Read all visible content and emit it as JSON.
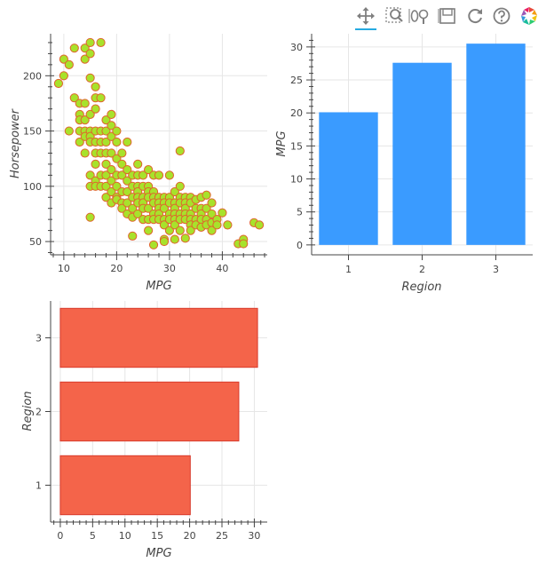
{
  "toolbar": {
    "tools": [
      "pan-tool",
      "box-zoom-tool",
      "wheel-zoom-tool",
      "save-tool",
      "reset-tool",
      "help-tool",
      "bokeh-logo"
    ]
  },
  "colors": {
    "scatter_fill": "#a8e22b",
    "scatter_line": "#e0632c",
    "bar_vertical_fill": "#3a9bff",
    "bar_horizontal_fill": "#f4644a",
    "bar_horizontal_line": "#d8392b",
    "grid": "#e6e6e6",
    "axis": "#444444",
    "tool_active": "#26aae1"
  },
  "chart_data": [
    {
      "type": "scatter",
      "xlabel": "MPG",
      "ylabel": "Horsepower",
      "xlim": [
        7.5,
        48.5
      ],
      "ylim": [
        38,
        238
      ],
      "xticks": [
        10,
        20,
        30,
        40
      ],
      "yticks": [
        50,
        100,
        150,
        200
      ],
      "grid": true,
      "points": [
        [
          9,
          193
        ],
        [
          10,
          215
        ],
        [
          10,
          200
        ],
        [
          11,
          210
        ],
        [
          11,
          150
        ],
        [
          12,
          180
        ],
        [
          12,
          225
        ],
        [
          13,
          175
        ],
        [
          13,
          165
        ],
        [
          13,
          160
        ],
        [
          13,
          150
        ],
        [
          13,
          140
        ],
        [
          14,
          225
        ],
        [
          14,
          215
        ],
        [
          14,
          175
        ],
        [
          14,
          160
        ],
        [
          14,
          150
        ],
        [
          14,
          145
        ],
        [
          14,
          130
        ],
        [
          15,
          230
        ],
        [
          15,
          220
        ],
        [
          15,
          198
        ],
        [
          15,
          165
        ],
        [
          15,
          150
        ],
        [
          15,
          145
        ],
        [
          15,
          140
        ],
        [
          15,
          110
        ],
        [
          15,
          100
        ],
        [
          15,
          72
        ],
        [
          16,
          190
        ],
        [
          16,
          180
        ],
        [
          16,
          170
        ],
        [
          16,
          150
        ],
        [
          16,
          140
        ],
        [
          16,
          130
        ],
        [
          16,
          120
        ],
        [
          16,
          105
        ],
        [
          16,
          100
        ],
        [
          17,
          230
        ],
        [
          17,
          180
        ],
        [
          17,
          150
        ],
        [
          17,
          140
        ],
        [
          17,
          130
        ],
        [
          17,
          110
        ],
        [
          17,
          100
        ],
        [
          18,
          160
        ],
        [
          18,
          150
        ],
        [
          18,
          140
        ],
        [
          18,
          130
        ],
        [
          18,
          120
        ],
        [
          18,
          110
        ],
        [
          18,
          100
        ],
        [
          18,
          90
        ],
        [
          19,
          165
        ],
        [
          19,
          155
        ],
        [
          19,
          145
        ],
        [
          19,
          130
        ],
        [
          19,
          115
        ],
        [
          19,
          105
        ],
        [
          19,
          95
        ],
        [
          19,
          85
        ],
        [
          20,
          150
        ],
        [
          20,
          140
        ],
        [
          20,
          125
        ],
        [
          20,
          110
        ],
        [
          20,
          100
        ],
        [
          20,
          90
        ],
        [
          20,
          88
        ],
        [
          21,
          130
        ],
        [
          21,
          120
        ],
        [
          21,
          110
        ],
        [
          21,
          95
        ],
        [
          21,
          85
        ],
        [
          21,
          80
        ],
        [
          22,
          140
        ],
        [
          22,
          115
        ],
        [
          22,
          105
        ],
        [
          22,
          95
        ],
        [
          22,
          85
        ],
        [
          22,
          75
        ],
        [
          23,
          110
        ],
        [
          23,
          100
        ],
        [
          23,
          90
        ],
        [
          23,
          80
        ],
        [
          23,
          72
        ],
        [
          23,
          55
        ],
        [
          24,
          120
        ],
        [
          24,
          110
        ],
        [
          24,
          100
        ],
        [
          24,
          95
        ],
        [
          24,
          90
        ],
        [
          24,
          85
        ],
        [
          24,
          75
        ],
        [
          25,
          110
        ],
        [
          25,
          100
        ],
        [
          25,
          90
        ],
        [
          25,
          85
        ],
        [
          25,
          80
        ],
        [
          25,
          70
        ],
        [
          26,
          115
        ],
        [
          26,
          100
        ],
        [
          26,
          95
        ],
        [
          26,
          90
        ],
        [
          26,
          80
        ],
        [
          26,
          70
        ],
        [
          26,
          60
        ],
        [
          27,
          110
        ],
        [
          27,
          95
        ],
        [
          27,
          90
        ],
        [
          27,
          85
        ],
        [
          27,
          75
        ],
        [
          27,
          70
        ],
        [
          27,
          47
        ],
        [
          28,
          110
        ],
        [
          28,
          90
        ],
        [
          28,
          85
        ],
        [
          28,
          80
        ],
        [
          28,
          75
        ],
        [
          28,
          70
        ],
        [
          29,
          90
        ],
        [
          29,
          85
        ],
        [
          29,
          80
        ],
        [
          29,
          70
        ],
        [
          29,
          65
        ],
        [
          29,
          52
        ],
        [
          29,
          50
        ],
        [
          30,
          110
        ],
        [
          30,
          90
        ],
        [
          30,
          85
        ],
        [
          30,
          75
        ],
        [
          30,
          70
        ],
        [
          30,
          60
        ],
        [
          31,
          95
        ],
        [
          31,
          85
        ],
        [
          31,
          80
        ],
        [
          31,
          75
        ],
        [
          31,
          70
        ],
        [
          31,
          65
        ],
        [
          31,
          52
        ],
        [
          32,
          132
        ],
        [
          32,
          100
        ],
        [
          32,
          90
        ],
        [
          32,
          85
        ],
        [
          32,
          75
        ],
        [
          32,
          70
        ],
        [
          32,
          60
        ],
        [
          33,
          90
        ],
        [
          33,
          85
        ],
        [
          33,
          80
        ],
        [
          33,
          75
        ],
        [
          33,
          70
        ],
        [
          33,
          53
        ],
        [
          34,
          90
        ],
        [
          34,
          85
        ],
        [
          34,
          75
        ],
        [
          34,
          70
        ],
        [
          34,
          65
        ],
        [
          34,
          60
        ],
        [
          35,
          88
        ],
        [
          35,
          80
        ],
        [
          35,
          70
        ],
        [
          35,
          65
        ],
        [
          36,
          90
        ],
        [
          36,
          80
        ],
        [
          36,
          75
        ],
        [
          36,
          70
        ],
        [
          36,
          63
        ],
        [
          37,
          92
        ],
        [
          37,
          80
        ],
        [
          37,
          70
        ],
        [
          37,
          65
        ],
        [
          38,
          85
        ],
        [
          38,
          75
        ],
        [
          38,
          67
        ],
        [
          38,
          60
        ],
        [
          39,
          70
        ],
        [
          39,
          65
        ],
        [
          40,
          76
        ],
        [
          41,
          65
        ],
        [
          43,
          48
        ],
        [
          44,
          52
        ],
        [
          44,
          48
        ],
        [
          46,
          67
        ],
        [
          47,
          65
        ]
      ]
    },
    {
      "type": "bar",
      "xlabel": "Region",
      "ylabel": "MPG",
      "categories": [
        "1",
        "2",
        "3"
      ],
      "values": [
        20.1,
        27.6,
        30.5
      ],
      "ylim": [
        -1.5,
        32
      ],
      "yticks": [
        0,
        5,
        10,
        15,
        20,
        25,
        30
      ],
      "grid": true
    },
    {
      "type": "bar",
      "orientation": "horizontal",
      "xlabel": "MPG",
      "ylabel": "Region",
      "categories": [
        "1",
        "2",
        "3"
      ],
      "values": [
        20.1,
        27.6,
        30.5
      ],
      "xlim": [
        -1.5,
        32
      ],
      "xticks": [
        0,
        5,
        10,
        15,
        20,
        25,
        30
      ],
      "grid": true
    }
  ]
}
